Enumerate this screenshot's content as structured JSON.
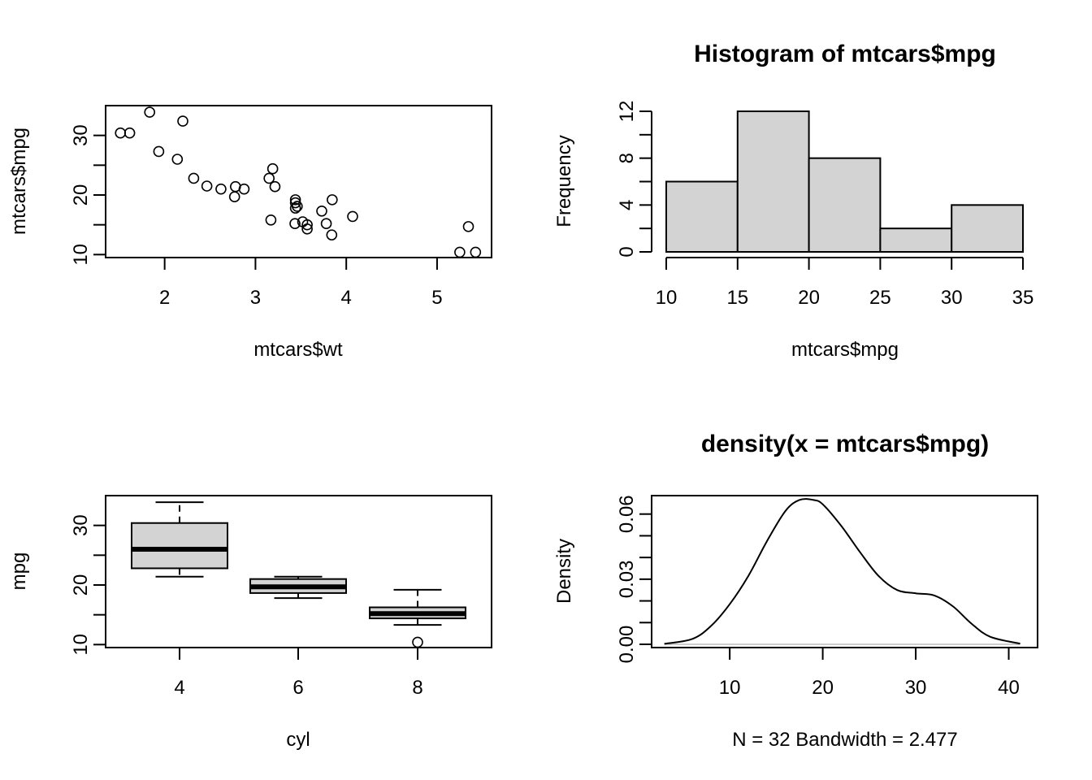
{
  "chart_data": [
    {
      "type": "scatter",
      "title": "",
      "xlabel": "mtcars$wt",
      "ylabel": "mtcars$mpg",
      "xlim": [
        1.35,
        5.6
      ],
      "ylim": [
        9.5,
        35
      ],
      "x_ticks": [
        2,
        3,
        4,
        5
      ],
      "y_ticks": [
        10,
        20,
        30
      ],
      "grid": false,
      "points": [
        [
          2.62,
          21.0
        ],
        [
          2.875,
          21.0
        ],
        [
          2.32,
          22.8
        ],
        [
          3.215,
          21.4
        ],
        [
          3.44,
          18.7
        ],
        [
          3.46,
          18.1
        ],
        [
          3.57,
          14.3
        ],
        [
          3.19,
          24.4
        ],
        [
          3.15,
          22.8
        ],
        [
          3.44,
          19.2
        ],
        [
          3.44,
          17.8
        ],
        [
          4.07,
          16.4
        ],
        [
          3.73,
          17.3
        ],
        [
          3.78,
          15.2
        ],
        [
          5.25,
          10.4
        ],
        [
          5.424,
          10.4
        ],
        [
          5.345,
          14.7
        ],
        [
          2.2,
          32.4
        ],
        [
          1.615,
          30.4
        ],
        [
          1.835,
          33.9
        ],
        [
          2.465,
          21.5
        ],
        [
          3.52,
          15.5
        ],
        [
          3.435,
          15.2
        ],
        [
          3.84,
          13.3
        ],
        [
          3.845,
          19.2
        ],
        [
          1.935,
          27.3
        ],
        [
          2.14,
          26.0
        ],
        [
          1.513,
          30.4
        ],
        [
          3.17,
          15.8
        ],
        [
          2.77,
          19.7
        ],
        [
          3.57,
          15.0
        ],
        [
          2.78,
          21.4
        ]
      ]
    },
    {
      "type": "bar",
      "title": "Histogram of mtcars$mpg",
      "xlabel": "mtcars$mpg",
      "ylabel": "Frequency",
      "bins": [
        [
          10,
          15
        ],
        [
          15,
          20
        ],
        [
          20,
          25
        ],
        [
          25,
          30
        ],
        [
          30,
          35
        ]
      ],
      "values": [
        6,
        12,
        8,
        2,
        4
      ],
      "x_ticks": [
        10,
        15,
        20,
        25,
        30,
        35
      ],
      "y_ticks": [
        0,
        4,
        8,
        12
      ],
      "ylim": [
        0,
        12
      ],
      "grid": false
    },
    {
      "type": "box",
      "title": "",
      "xlabel": "cyl",
      "ylabel": "mpg",
      "categories": [
        "4",
        "6",
        "8"
      ],
      "ylim": [
        9.5,
        35
      ],
      "y_ticks": [
        10,
        20,
        30
      ],
      "boxes": [
        {
          "lower_whisker": 21.4,
          "q1": 22.8,
          "median": 26.0,
          "q3": 30.4,
          "upper_whisker": 33.9,
          "outliers": []
        },
        {
          "lower_whisker": 17.8,
          "q1": 18.65,
          "median": 19.7,
          "q3": 21.0,
          "upper_whisker": 21.4,
          "outliers": []
        },
        {
          "lower_whisker": 13.3,
          "q1": 14.4,
          "median": 15.2,
          "q3": 16.25,
          "upper_whisker": 19.2,
          "outliers": [
            10.4
          ]
        }
      ],
      "grid": false
    },
    {
      "type": "line",
      "title": "density(x = mtcars$mpg)",
      "xlabel": "N = 32   Bandwidth = 2.477",
      "ylabel": "Density",
      "xlim": [
        1.6,
        43.1
      ],
      "ylim": [
        -0.0015,
        0.0685
      ],
      "x_ticks": [
        10,
        20,
        30,
        40
      ],
      "y_ticks": [
        0.0,
        0.03,
        0.06
      ],
      "y_tick_labels": [
        "0.00",
        "0.03",
        "0.06"
      ],
      "zero_line": true,
      "grid": false,
      "x": [
        2.97,
        6,
        8,
        10,
        12,
        14,
        16,
        17.5,
        19,
        20,
        22,
        24,
        26,
        28,
        30,
        32,
        34,
        36,
        38,
        41.23
      ],
      "y": [
        0.0002,
        0.0025,
        0.0085,
        0.0185,
        0.0315,
        0.0475,
        0.0615,
        0.0665,
        0.0665,
        0.0645,
        0.0545,
        0.0425,
        0.0315,
        0.025,
        0.0235,
        0.0225,
        0.0175,
        0.0095,
        0.0035,
        0.0003
      ]
    }
  ]
}
